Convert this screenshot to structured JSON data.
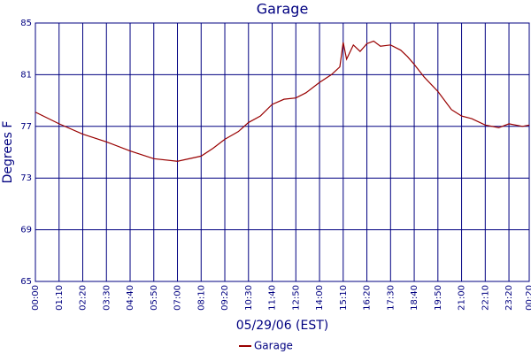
{
  "chart_data": {
    "type": "line",
    "title": "Garage",
    "xlabel": "05/29/06 (EST)",
    "ylabel": "Degrees F",
    "x": [
      0,
      70,
      140,
      210,
      280,
      350,
      420,
      490,
      525,
      560,
      600,
      630,
      665,
      700,
      735,
      770,
      800,
      840,
      875,
      900,
      910,
      920,
      940,
      960,
      980,
      1000,
      1020,
      1050,
      1080,
      1100,
      1120,
      1150,
      1190,
      1230,
      1260,
      1290,
      1330,
      1370,
      1400,
      1440,
      1460
    ],
    "series": [
      {
        "name": "Garage",
        "color": "#990000",
        "values": [
          78.1,
          77.2,
          76.4,
          75.8,
          75.1,
          74.5,
          74.3,
          74.7,
          75.3,
          76.0,
          76.6,
          77.3,
          77.8,
          78.7,
          79.1,
          79.2,
          79.6,
          80.4,
          81.0,
          81.6,
          83.5,
          82.2,
          83.3,
          82.8,
          83.4,
          83.6,
          83.2,
          83.3,
          82.9,
          82.4,
          81.8,
          80.8,
          79.7,
          78.3,
          77.8,
          77.6,
          77.1,
          76.9,
          77.2,
          77.0,
          77.1
        ]
      }
    ],
    "xlim": [
      0,
      1460
    ],
    "xticks": [
      {
        "value": 0,
        "label": "00:00"
      },
      {
        "value": 70,
        "label": "01:10"
      },
      {
        "value": 140,
        "label": "02:20"
      },
      {
        "value": 210,
        "label": "03:30"
      },
      {
        "value": 280,
        "label": "04:40"
      },
      {
        "value": 350,
        "label": "05:50"
      },
      {
        "value": 420,
        "label": "07:00"
      },
      {
        "value": 490,
        "label": "08:10"
      },
      {
        "value": 560,
        "label": "09:20"
      },
      {
        "value": 630,
        "label": "10:30"
      },
      {
        "value": 700,
        "label": "11:40"
      },
      {
        "value": 770,
        "label": "12:50"
      },
      {
        "value": 840,
        "label": "14:00"
      },
      {
        "value": 910,
        "label": "15:10"
      },
      {
        "value": 980,
        "label": "16:20"
      },
      {
        "value": 1050,
        "label": "17:30"
      },
      {
        "value": 1120,
        "label": "18:40"
      },
      {
        "value": 1190,
        "label": "19:50"
      },
      {
        "value": 1260,
        "label": "21:00"
      },
      {
        "value": 1330,
        "label": "22:10"
      },
      {
        "value": 1400,
        "label": "23:20"
      },
      {
        "value": 1460,
        "label": "00:20"
      }
    ],
    "ylim": [
      65,
      85
    ],
    "yticks": [
      65,
      69,
      73,
      77,
      81,
      85
    ],
    "grid": true
  }
}
